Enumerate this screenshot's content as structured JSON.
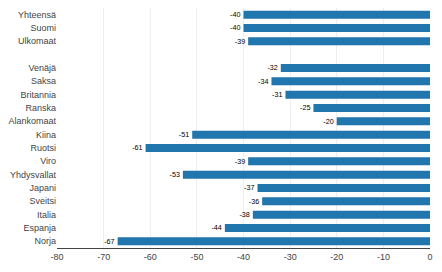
{
  "chart_data": {
    "type": "bar",
    "orientation": "horizontal",
    "categories": [
      "Yhteensä",
      "Suomi",
      "Ulkomaat",
      null,
      "Venäjä",
      "Saksa",
      "Britannia",
      "Ranska",
      "Alankomaat",
      "Kiina",
      "Ruotsi",
      "Viro",
      "Yhdysvallat",
      "Japani",
      "Sveitsi",
      "Italia",
      "Espanja",
      "Norja"
    ],
    "values": [
      -40,
      -40,
      -39,
      null,
      -32,
      -34,
      -31,
      -25,
      -20,
      -51,
      -61,
      -39,
      -53,
      -37,
      -36,
      -38,
      -44,
      -67
    ],
    "color": "#2176ae",
    "xlim": [
      -80,
      0
    ],
    "xticks": [
      -80,
      -70,
      -60,
      -50,
      -40,
      -30,
      -20,
      -10,
      0
    ],
    "grid": true,
    "data_labels": true
  }
}
